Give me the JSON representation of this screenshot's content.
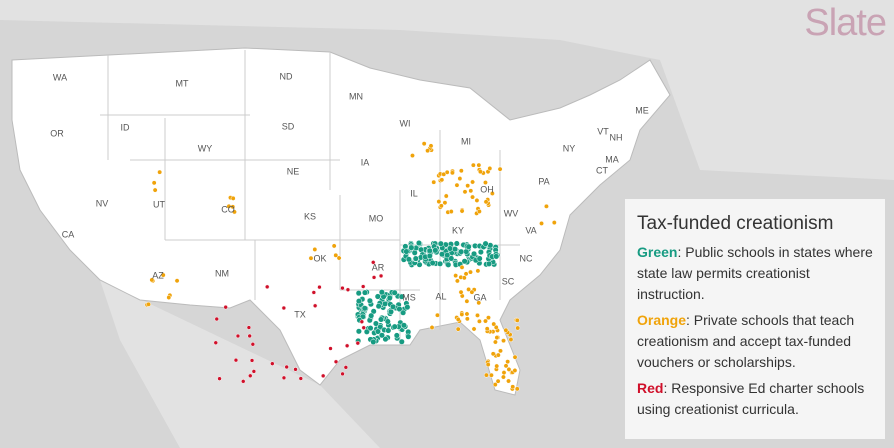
{
  "logo": "Slate",
  "map": {
    "states": [
      "WA",
      "MT",
      "ND",
      "MN",
      "OR",
      "ID",
      "WY",
      "SD",
      "WI",
      "MI",
      "NY",
      "VT",
      "NH",
      "ME",
      "MA",
      "CT",
      "NV",
      "UT",
      "CO",
      "NE",
      "IA",
      "IL",
      "OH",
      "PA",
      "CA",
      "KS",
      "MO",
      "KY",
      "WV",
      "VA",
      "AZ",
      "NM",
      "OK",
      "AR",
      "NC",
      "TX",
      "MS",
      "AL",
      "GA",
      "SC"
    ]
  },
  "legend": {
    "title": "Tax-funded creationism",
    "items": [
      {
        "key": "Green",
        "text": ": Public schools in states where state law permits creationist instruction."
      },
      {
        "key": "Orange",
        "text": ": Private schools that teach creationism and accept tax-funded vouchers or scholarships."
      },
      {
        "key": "Red",
        "text": ": Responsive Ed charter schools using creationist curricula."
      }
    ]
  }
}
